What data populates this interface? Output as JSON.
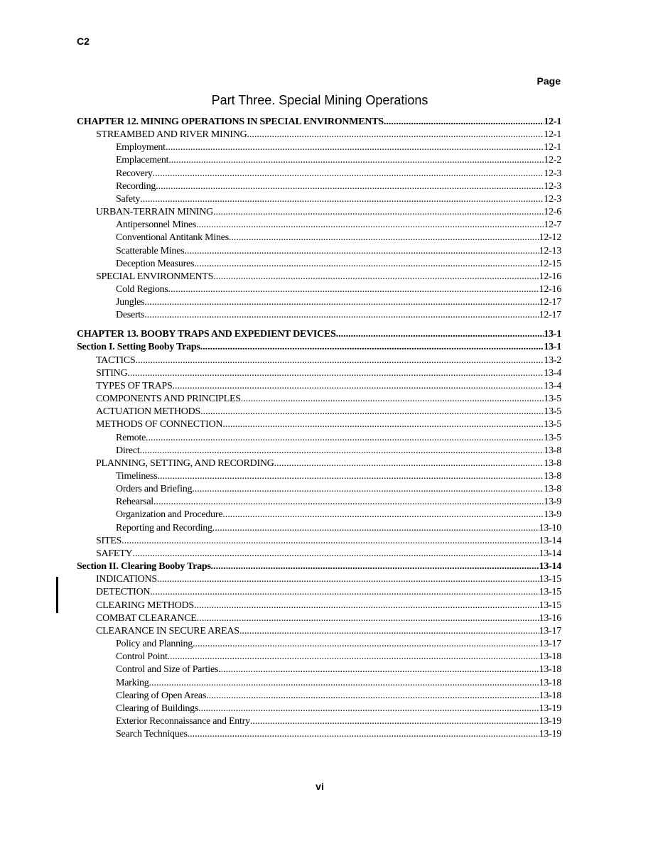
{
  "header": {
    "change": "C2",
    "page_label": "Page"
  },
  "part_title": "Part Three. Special Mining Operations",
  "footer": {
    "page_number": "vi"
  },
  "toc": [
    {
      "title": "CHAPTER 12.  MINING OPERATIONS IN SPECIAL ENVIRONMENTS",
      "page": "12-1",
      "level": 0,
      "bold": true
    },
    {
      "title": "STREAMBED AND RIVER MINING",
      "page": "12-1",
      "level": 1
    },
    {
      "title": "Employment",
      "page": "12-1",
      "level": 2
    },
    {
      "title": "Emplacement",
      "page": "12-2",
      "level": 2
    },
    {
      "title": "Recovery",
      "page": "12-3",
      "level": 2
    },
    {
      "title": "Recording",
      "page": "12-3",
      "level": 2
    },
    {
      "title": "Safety",
      "page": "12-3",
      "level": 2
    },
    {
      "title": "URBAN-TERRAIN MINING",
      "page": "12-6",
      "level": 1
    },
    {
      "title": "Antipersonnel Mines",
      "page": "12-7",
      "level": 2
    },
    {
      "title": "Conventional Antitank Mines",
      "page": "12-12",
      "level": 2
    },
    {
      "title": "Scatterable Mines",
      "page": "12-13",
      "level": 2
    },
    {
      "title": "Deception Measures",
      "page": "12-15",
      "level": 2
    },
    {
      "title": "SPECIAL ENVIRONMENTS",
      "page": "12-16",
      "level": 1
    },
    {
      "title": "Cold Regions",
      "page": "12-16",
      "level": 2
    },
    {
      "title": "Jungles",
      "page": "12-17",
      "level": 2
    },
    {
      "title": "Deserts",
      "page": "12-17",
      "level": 2
    },
    {
      "title": "CHAPTER 13.  BOOBY TRAPS AND EXPEDIENT DEVICES",
      "page": "13-1",
      "level": 0,
      "bold": true,
      "gap": true
    },
    {
      "title": "Section I. Setting Booby Traps",
      "page": "13-1",
      "level": 0,
      "bold": true
    },
    {
      "title": "TACTICS",
      "page": "13-2",
      "level": 1
    },
    {
      "title": "SITING",
      "page": "13-4",
      "level": 1
    },
    {
      "title": "TYPES OF TRAPS",
      "page": "13-4",
      "level": 1
    },
    {
      "title": "COMPONENTS AND PRINCIPLES",
      "page": "13-5",
      "level": 1
    },
    {
      "title": "ACTUATION METHODS",
      "page": "13-5",
      "level": 1
    },
    {
      "title": "METHODS OF CONNECTION",
      "page": "13-5",
      "level": 1
    },
    {
      "title": "Remote",
      "page": "13-5",
      "level": 2
    },
    {
      "title": "Direct",
      "page": "13-8",
      "level": 2
    },
    {
      "title": "PLANNING, SETTING, AND RECORDING",
      "page": "13-8",
      "level": 1
    },
    {
      "title": "Timeliness",
      "page": "13-8",
      "level": 2
    },
    {
      "title": "Orders and Briefing",
      "page": "13-8",
      "level": 2
    },
    {
      "title": "Rehearsal",
      "page": "13-9",
      "level": 2
    },
    {
      "title": "Organization and Procedure",
      "page": "13-9",
      "level": 2
    },
    {
      "title": "Reporting and Recording",
      "page": "13-10",
      "level": 2
    },
    {
      "title": "SITES",
      "page": "13-14",
      "level": 1
    },
    {
      "title": "SAFETY",
      "page": "13-14",
      "level": 1
    },
    {
      "title": "Section II. Clearing Booby Traps",
      "page": "13-14",
      "level": 0,
      "bold": true
    },
    {
      "title": "INDICATIONS",
      "page": "13-15",
      "level": 1
    },
    {
      "title": "DETECTION",
      "page": "13-15",
      "level": 1
    },
    {
      "title": "CLEARING METHODS",
      "page": "13-15",
      "level": 1
    },
    {
      "title": "COMBAT CLEARANCE",
      "page": "13-16",
      "level": 1
    },
    {
      "title": "CLEARANCE IN SECURE AREAS",
      "page": "13-17",
      "level": 1
    },
    {
      "title": "Policy and Planning",
      "page": "13-17",
      "level": 2
    },
    {
      "title": "Control Point",
      "page": "13-18",
      "level": 2
    },
    {
      "title": "Control and Size of Parties",
      "page": "13-18",
      "level": 2
    },
    {
      "title": "Marking",
      "page": "13-18",
      "level": 2
    },
    {
      "title": "Clearing of Open Areas",
      "page": "13-18",
      "level": 2
    },
    {
      "title": "Clearing of Buildings",
      "page": "13-19",
      "level": 2
    },
    {
      "title": "Exterior Reconnaissance and Entry",
      "page": "13-19",
      "level": 2
    },
    {
      "title": "Search Techniques",
      "page": "13-19",
      "level": 2
    }
  ]
}
